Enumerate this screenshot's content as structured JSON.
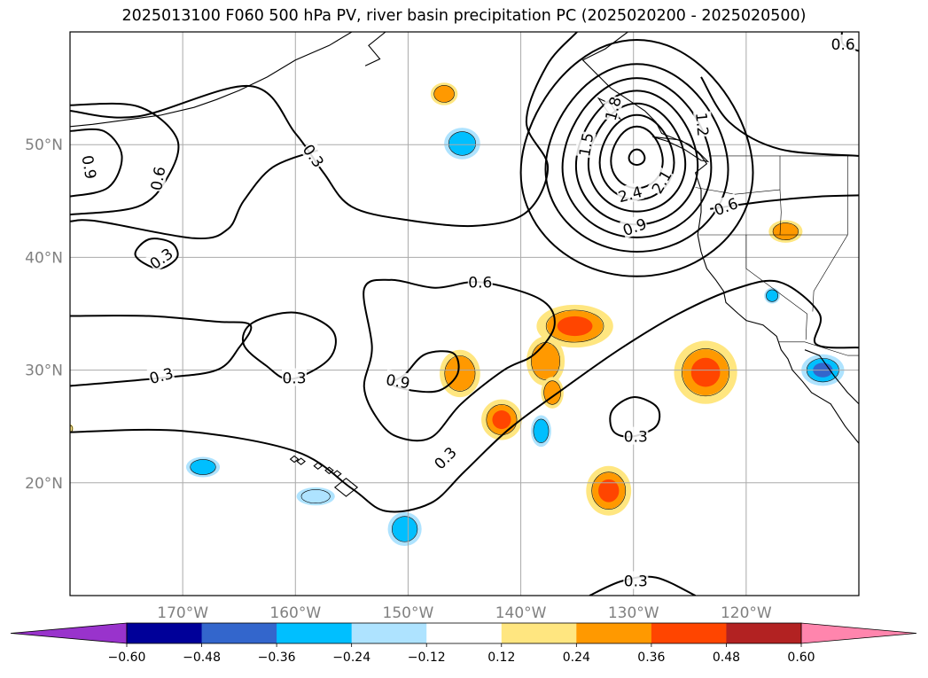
{
  "title": "2025013100 F060 500 hPa PV, river basin precipitation PC (2025020200 - 2025020500)",
  "map": {
    "lon_range": [
      -180,
      -110
    ],
    "lat_range": [
      10,
      60
    ],
    "lat_ticks": [
      {
        "lat": 20,
        "label": "20°N"
      },
      {
        "lat": 30,
        "label": "30°N"
      },
      {
        "lat": 40,
        "label": "40°N"
      },
      {
        "lat": 50,
        "label": "50°N"
      }
    ],
    "lon_ticks": [
      {
        "lon": -170,
        "label": "170°W"
      },
      {
        "lon": -160,
        "label": "160°W"
      },
      {
        "lon": -150,
        "label": "150°W"
      },
      {
        "lon": -140,
        "label": "140°W"
      },
      {
        "lon": -130,
        "label": "130°W"
      },
      {
        "lon": -120,
        "label": "120°W"
      }
    ],
    "gridlines": true,
    "contour_labels": [
      {
        "text": "0.9",
        "lon": -178.3,
        "lat": 48.0,
        "rot": 80
      },
      {
        "text": "0.6",
        "lon": -172.2,
        "lat": 47.0,
        "rot": -80
      },
      {
        "text": "0.3",
        "lon": -158.4,
        "lat": 49.0,
        "rot": 55
      },
      {
        "text": "0.3",
        "lon": -171.9,
        "lat": 39.9,
        "rot": -35
      },
      {
        "text": "0.6",
        "lon": -143.6,
        "lat": 37.8,
        "rot": 0
      },
      {
        "text": "0.9",
        "lon": -150.9,
        "lat": 29.0,
        "rot": 10
      },
      {
        "text": "0.3",
        "lon": -160.1,
        "lat": 29.3,
        "rot": 0
      },
      {
        "text": "0.3",
        "lon": -171.9,
        "lat": 29.5,
        "rot": -15
      },
      {
        "text": "0.3",
        "lon": -146.7,
        "lat": 22.2,
        "rot": -45
      },
      {
        "text": "0.3",
        "lon": -129.8,
        "lat": 24.1,
        "rot": 0
      },
      {
        "text": "0.3",
        "lon": -129.8,
        "lat": 11.3,
        "rot": 0
      },
      {
        "text": "1.5",
        "lon": -134.2,
        "lat": 50.0,
        "rot": -80
      },
      {
        "text": "1.8",
        "lon": -131.8,
        "lat": 53.2,
        "rot": -75
      },
      {
        "text": "2.4",
        "lon": -130.3,
        "lat": 45.6,
        "rot": -15
      },
      {
        "text": "2.1",
        "lon": -127.5,
        "lat": 46.7,
        "rot": -60
      },
      {
        "text": "1.2",
        "lon": -123.9,
        "lat": 51.8,
        "rot": 85
      },
      {
        "text": "0.9",
        "lon": -129.9,
        "lat": 42.7,
        "rot": -20
      },
      {
        "text": "0.6",
        "lon": -121.8,
        "lat": 44.5,
        "rot": -20
      },
      {
        "text": "0.6",
        "lon": -111.4,
        "lat": 58.9,
        "rot": 0
      }
    ],
    "precip_blobs": [
      {
        "lon": -146.8,
        "lat": 54.5,
        "rx": 1.2,
        "ry": 1.0,
        "level": "pos",
        "value": 0.3
      },
      {
        "lon": -145.2,
        "lat": 50.1,
        "rx": 1.6,
        "ry": 1.4,
        "level": "neg",
        "value": -0.32
      },
      {
        "lon": -116.5,
        "lat": 42.3,
        "rx": 1.5,
        "ry": 1.0,
        "level": "pos",
        "value": 0.32
      },
      {
        "lon": -117.7,
        "lat": 36.6,
        "rx": 0.7,
        "ry": 0.7,
        "level": "neg",
        "value": -0.28
      },
      {
        "lon": -135.2,
        "lat": 33.9,
        "rx": 3.4,
        "ry": 1.9,
        "level": "pos",
        "value": 0.42
      },
      {
        "lon": -137.8,
        "lat": 30.8,
        "rx": 1.7,
        "ry": 2.2,
        "level": "pos",
        "value": 0.3
      },
      {
        "lon": -137.2,
        "lat": 28.0,
        "rx": 1.0,
        "ry": 1.4,
        "level": "pos",
        "value": 0.26
      },
      {
        "lon": -141.7,
        "lat": 25.6,
        "rx": 1.8,
        "ry": 1.8,
        "level": "pos",
        "value": 0.4
      },
      {
        "lon": -145.4,
        "lat": 29.7,
        "rx": 1.8,
        "ry": 2.1,
        "level": "pos",
        "value": 0.3
      },
      {
        "lon": -123.6,
        "lat": 29.8,
        "rx": 2.8,
        "ry": 2.8,
        "level": "pos",
        "value": 0.42
      },
      {
        "lon": -132.2,
        "lat": 19.3,
        "rx": 2.0,
        "ry": 2.2,
        "level": "pos",
        "value": 0.4
      },
      {
        "lon": -138.2,
        "lat": 24.6,
        "rx": 0.9,
        "ry": 1.4,
        "level": "neg",
        "value": -0.3
      },
      {
        "lon": -168.2,
        "lat": 21.4,
        "rx": 1.5,
        "ry": 0.9,
        "level": "neg",
        "value": -0.28
      },
      {
        "lon": -158.2,
        "lat": 18.8,
        "rx": 1.7,
        "ry": 0.8,
        "level": "neg",
        "value": -0.22
      },
      {
        "lon": -150.3,
        "lat": 15.9,
        "rx": 1.5,
        "ry": 1.5,
        "level": "neg",
        "value": -0.32
      },
      {
        "lon": -113.2,
        "lat": 30.0,
        "rx": 1.9,
        "ry": 1.4,
        "level": "neg",
        "value": -0.45
      },
      {
        "lon": -180.0,
        "lat": 24.8,
        "rx": 0.3,
        "ry": 0.4,
        "level": "pos",
        "value": 0.16
      }
    ]
  },
  "colorbar": {
    "ticks": [
      "−0.60",
      "−0.48",
      "−0.36",
      "−0.24",
      "−0.12",
      "0.12",
      "0.24",
      "0.36",
      "0.48",
      "0.60"
    ],
    "colors": [
      "#9933cc",
      "#000099",
      "#3366cc",
      "#00bfff",
      "#aee3ff",
      "#ffffff",
      "#ffe680",
      "#ff9900",
      "#ff4500",
      "#b22222",
      "#ff85ad"
    ],
    "under_color": "#9933cc",
    "over_color": "#ff85ad"
  },
  "colors": {
    "contour": "#000000",
    "coast": "#000000",
    "grid": "#aaaaaa",
    "axis_label": "#808080"
  }
}
